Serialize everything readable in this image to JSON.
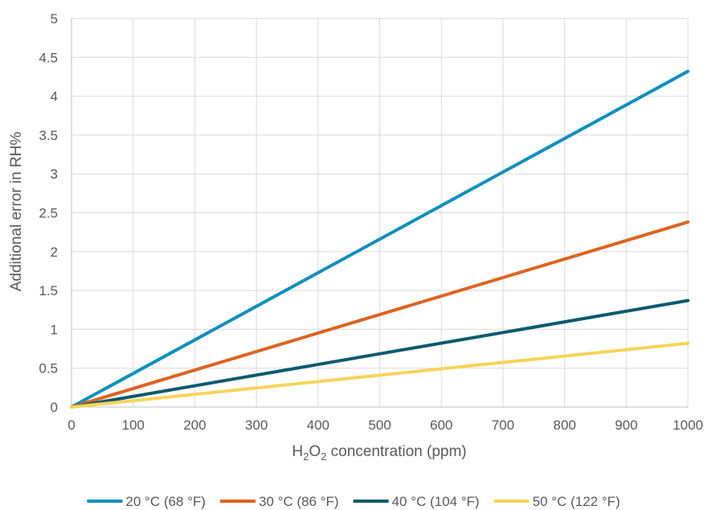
{
  "chart_data": {
    "type": "line",
    "xlabel": {
      "prefix": "H",
      "sub1": "2",
      "mid": "O",
      "sub2": "2",
      "suffix": " concentration (ppm)"
    },
    "ylabel": "Additional error in RH%",
    "xlim": [
      0,
      1000
    ],
    "ylim": [
      0,
      5
    ],
    "x_ticks": [
      0,
      100,
      200,
      300,
      400,
      500,
      600,
      700,
      800,
      900,
      1000
    ],
    "y_ticks": [
      "0",
      "0.5",
      "1",
      "1.5",
      "2",
      "2.5",
      "3",
      "3.5",
      "4",
      "4.5",
      "5"
    ],
    "grid": true,
    "legend_position": "bottom",
    "series": [
      {
        "name": "20 °C (68 °F)",
        "color": "#0e8fbd",
        "x": [
          0,
          1000
        ],
        "y": [
          0,
          4.32
        ]
      },
      {
        "name": "30 °C (86 °F)",
        "color": "#dd6321",
        "x": [
          0,
          1000
        ],
        "y": [
          0,
          2.38
        ]
      },
      {
        "name": "40 °C (104 °F)",
        "color": "#0b5a6e",
        "x": [
          0,
          1000
        ],
        "y": [
          0,
          1.37
        ]
      },
      {
        "name": "50 °C (122 °F)",
        "color": "#f7d45a",
        "x": [
          0,
          1000
        ],
        "y": [
          0,
          0.82
        ]
      }
    ]
  }
}
